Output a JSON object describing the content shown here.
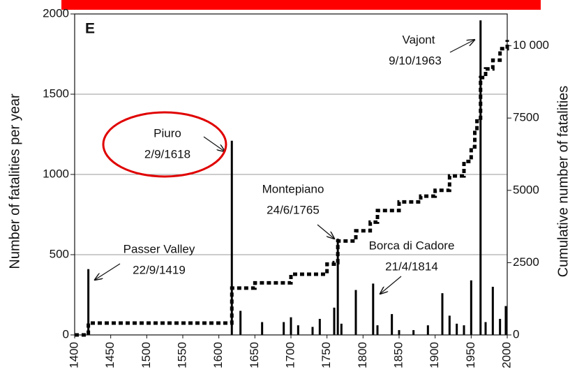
{
  "chart_data": {
    "type": "bar",
    "x": [
      1419,
      1618,
      1630,
      1660,
      1690,
      1700,
      1710,
      1730,
      1740,
      1760,
      1765,
      1770,
      1790,
      1814,
      1820,
      1840,
      1850,
      1870,
      1890,
      1910,
      1920,
      1930,
      1940,
      1950,
      1963,
      1970,
      1980,
      1990,
      1998
    ],
    "values": [
      410,
      1210,
      150,
      80,
      80,
      110,
      60,
      50,
      100,
      170,
      600,
      70,
      280,
      320,
      60,
      130,
      30,
      30,
      60,
      260,
      120,
      70,
      60,
      340,
      1960,
      80,
      300,
      100,
      180
    ],
    "color": "#000000",
    "cumulative": {
      "type": "line",
      "axis": "y2",
      "color": "#000000",
      "x": [
        1400,
        1419,
        1610,
        1618,
        1650,
        1700,
        1750,
        1760,
        1765,
        1790,
        1810,
        1820,
        1850,
        1880,
        1900,
        1920,
        1940,
        1950,
        1955,
        1958,
        1963,
        1970,
        1980,
        1990,
        2000
      ],
      "values": [
        0,
        410,
        410,
        1620,
        1800,
        2100,
        2450,
        2500,
        3250,
        3600,
        3900,
        4300,
        4600,
        4800,
        5000,
        5500,
        6000,
        6500,
        7000,
        7400,
        8900,
        9200,
        9500,
        9900,
        10200
      ]
    },
    "ylabel": "Number of fatalities per year",
    "y2label": "Cumulative number of fatalities",
    "xlim": [
      1400,
      2000
    ],
    "xticks": [
      1400,
      1450,
      1500,
      1550,
      1600,
      1650,
      1700,
      1750,
      1800,
      1850,
      1900,
      1950,
      2000
    ],
    "ylim": [
      0,
      2000
    ],
    "yticks": [
      0,
      500,
      1000,
      1500,
      2000
    ],
    "y2lim": [
      0,
      11100
    ],
    "y2ticks": [
      0,
      2500,
      5000,
      7500,
      {
        "value": 10000,
        "label": "10 000"
      }
    ],
    "grid": true,
    "annotations": [
      [
        "E"
      ],
      [
        "Vajont",
        "9/10/1963"
      ],
      [
        "Piuro",
        "2/9/1618"
      ],
      [
        "Montepiano",
        "24/6/1765"
      ],
      [
        "Passer Valley",
        "22/9/1419"
      ],
      [
        "Borca di Cadore",
        "21/4/1814"
      ]
    ]
  }
}
